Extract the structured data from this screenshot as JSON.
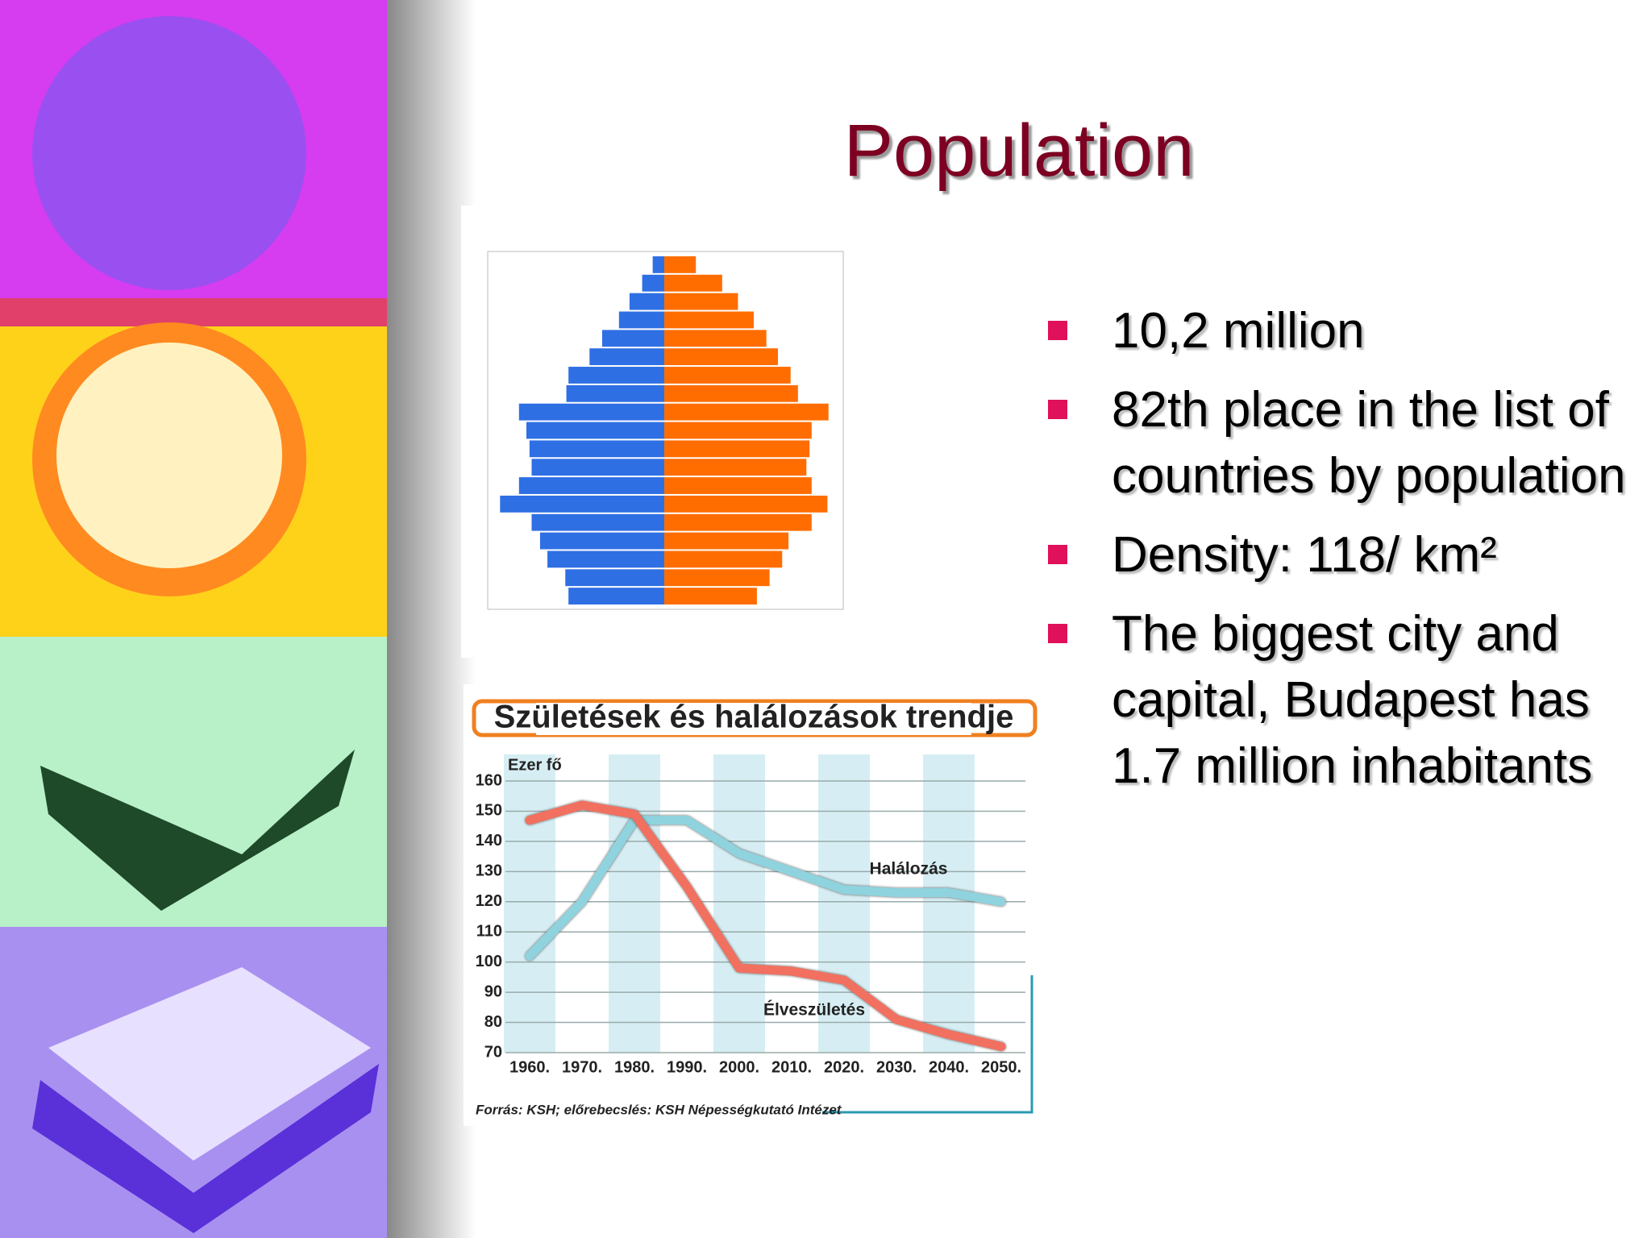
{
  "title": "Population",
  "bullets": [
    "10,2 million",
    "82th place in the list of countries by population",
    "Density: 118/ km²",
    "The biggest city and capital, Budapest has 1.7 million inhabitants"
  ],
  "chart_data": [
    {
      "type": "pyramid",
      "categories": [
        null,
        null,
        null,
        null,
        null,
        null,
        null,
        null,
        null,
        null,
        null,
        null,
        null,
        null,
        null,
        null,
        null,
        null,
        null
      ],
      "series": [
        {
          "color": "#2f6fe4",
          "side": "left",
          "values": [
            11,
            21,
            33,
            43,
            59,
            71,
            91,
            93,
            138,
            131,
            128,
            126,
            138,
            156,
            126,
            118,
            111,
            94,
            91
          ]
        },
        {
          "color": "#ff6d00",
          "side": "right",
          "values": [
            30,
            55,
            70,
            85,
            97,
            108,
            120,
            127,
            156,
            140,
            138,
            135,
            140,
            155,
            140,
            118,
            112,
            100,
            88
          ]
        }
      ],
      "xlim": [
        -170,
        170
      ]
    },
    {
      "type": "line",
      "title": "Születések és halálozások trendje",
      "y_label": "Ezer fő",
      "source": "Forrás: KSH; előrebecslés: KSH Népességkutató Intézet",
      "categories": [
        "1960.",
        "1970.",
        "1980.",
        "1990.",
        "2000.",
        "2010.",
        "2020.",
        "2030.",
        "2040.",
        "2050."
      ],
      "series": [
        {
          "name": "Halálozás",
          "color": "#8fd3de",
          "values": [
            102,
            120,
            147,
            147,
            136,
            130,
            124,
            123,
            123,
            120
          ]
        },
        {
          "name": "Élveszületés",
          "color": "#f2705f",
          "values": [
            147,
            152,
            149,
            125,
            98,
            97,
            94,
            81,
            76,
            72
          ]
        }
      ],
      "ylim": [
        70,
        160
      ],
      "yticks": [
        70,
        80,
        90,
        100,
        110,
        120,
        130,
        140,
        150,
        160
      ],
      "grid": true
    }
  ]
}
